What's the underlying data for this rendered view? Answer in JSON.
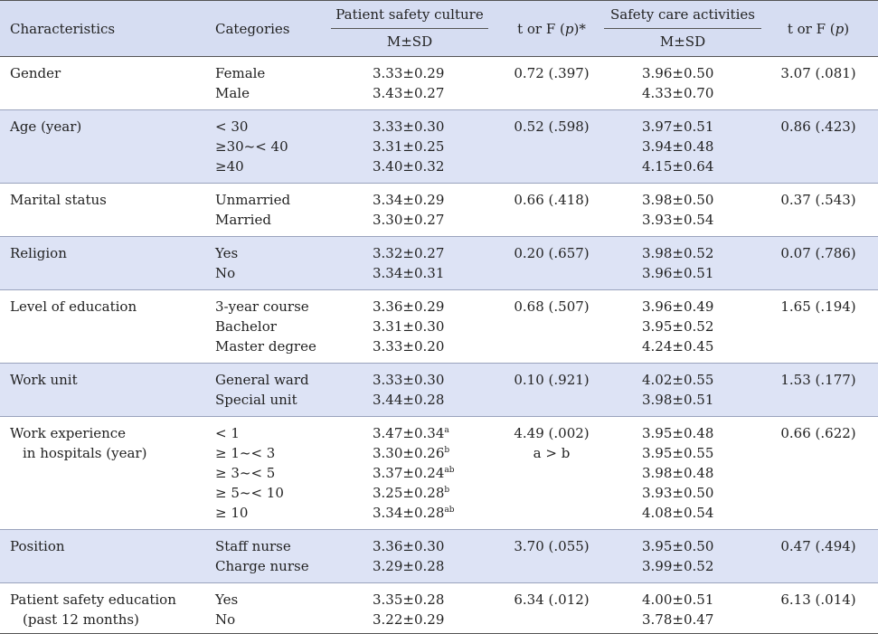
{
  "header": {
    "characteristics": "Characteristics",
    "categories": "Categories",
    "psc_group": "Patient safety culture",
    "psc_sub": "M±SD",
    "t1_pre": "t or F (",
    "t1_p": "p",
    "t1_post": ")*",
    "sca_group": "Safety care activities",
    "sca_sub": "M±SD",
    "t2_pre": "t or F (",
    "t2_p": "p",
    "t2_post": ")"
  },
  "rows": [
    {
      "characteristic": [
        "Gender"
      ],
      "categories": [
        "Female",
        "Male"
      ],
      "psc": [
        {
          "v": "3.33±0.29",
          "sup": ""
        },
        {
          "v": "3.43±0.27",
          "sup": ""
        }
      ],
      "t1": [
        "0.72 (.397)"
      ],
      "sca": [
        "3.96±0.50",
        "4.33±0.70"
      ],
      "t2": "3.07 (.081)"
    },
    {
      "characteristic": [
        "Age (year)"
      ],
      "categories": [
        "< 30",
        "≥30~< 40",
        "≥40"
      ],
      "psc": [
        {
          "v": "3.33±0.30",
          "sup": ""
        },
        {
          "v": "3.31±0.25",
          "sup": ""
        },
        {
          "v": "3.40±0.32",
          "sup": ""
        }
      ],
      "t1": [
        "0.52 (.598)"
      ],
      "sca": [
        "3.97±0.51",
        "3.94±0.48",
        "4.15±0.64"
      ],
      "t2": "0.86 (.423)"
    },
    {
      "characteristic": [
        "Marital status"
      ],
      "categories": [
        "Unmarried",
        "Married"
      ],
      "psc": [
        {
          "v": "3.34±0.29",
          "sup": ""
        },
        {
          "v": "3.30±0.27",
          "sup": ""
        }
      ],
      "t1": [
        "0.66 (.418)"
      ],
      "sca": [
        "3.98±0.50",
        "3.93±0.54"
      ],
      "t2": "0.37 (.543)"
    },
    {
      "characteristic": [
        "Religion"
      ],
      "categories": [
        "Yes",
        "No"
      ],
      "psc": [
        {
          "v": "3.32±0.27",
          "sup": ""
        },
        {
          "v": "3.34±0.31",
          "sup": ""
        }
      ],
      "t1": [
        "0.20 (.657)"
      ],
      "sca": [
        "3.98±0.52",
        "3.96±0.51"
      ],
      "t2": "0.07 (.786)"
    },
    {
      "characteristic": [
        "Level of education"
      ],
      "categories": [
        "3-year course",
        "Bachelor",
        "Master degree"
      ],
      "psc": [
        {
          "v": "3.36±0.29",
          "sup": ""
        },
        {
          "v": "3.31±0.30",
          "sup": ""
        },
        {
          "v": "3.33±0.20",
          "sup": ""
        }
      ],
      "t1": [
        "0.68 (.507)"
      ],
      "sca": [
        "3.96±0.49",
        "3.95±0.52",
        "4.24±0.45"
      ],
      "t2": "1.65 (.194)"
    },
    {
      "characteristic": [
        "Work unit"
      ],
      "categories": [
        "General ward",
        "Special unit"
      ],
      "psc": [
        {
          "v": "3.33±0.30",
          "sup": ""
        },
        {
          "v": "3.44±0.28",
          "sup": ""
        }
      ],
      "t1": [
        "0.10 (.921)"
      ],
      "sca": [
        "4.02±0.55",
        "3.98±0.51"
      ],
      "t2": "1.53 (.177)"
    },
    {
      "characteristic": [
        "Work experience",
        "  in hospitals (year)"
      ],
      "categories": [
        "< 1",
        "≥ 1~< 3",
        "≥ 3~< 5",
        "≥ 5~< 10",
        "≥ 10"
      ],
      "psc": [
        {
          "v": "3.47±0.34",
          "sup": "a"
        },
        {
          "v": "3.30±0.26",
          "sup": "b"
        },
        {
          "v": "3.37±0.24",
          "sup": "ab"
        },
        {
          "v": "3.25±0.28",
          "sup": "b"
        },
        {
          "v": "3.34±0.28",
          "sup": "ab"
        }
      ],
      "t1": [
        "4.49 (.002)",
        "a > b"
      ],
      "sca": [
        "3.95±0.48",
        "3.95±0.55",
        "3.98±0.48",
        "3.93±0.50",
        "4.08±0.54"
      ],
      "t2": "0.66 (.622)"
    },
    {
      "characteristic": [
        "Position"
      ],
      "categories": [
        "Staff nurse",
        "Charge nurse"
      ],
      "psc": [
        {
          "v": "3.36±0.30",
          "sup": ""
        },
        {
          "v": "3.29±0.28",
          "sup": ""
        }
      ],
      "t1": [
        "3.70 (.055)"
      ],
      "sca": [
        "3.95±0.50",
        "3.99±0.52"
      ],
      "t2": "0.47 (.494)"
    },
    {
      "characteristic": [
        "Patient safety education",
        "  (past 12 months)"
      ],
      "categories": [
        "Yes",
        "No"
      ],
      "psc": [
        {
          "v": "3.35±0.28",
          "sup": ""
        },
        {
          "v": "3.22±0.29",
          "sup": ""
        }
      ],
      "t1": [
        "6.34 (.012)"
      ],
      "sca": [
        "4.00±0.51",
        "3.78±0.47"
      ],
      "t2": "6.13 (.014)"
    }
  ]
}
